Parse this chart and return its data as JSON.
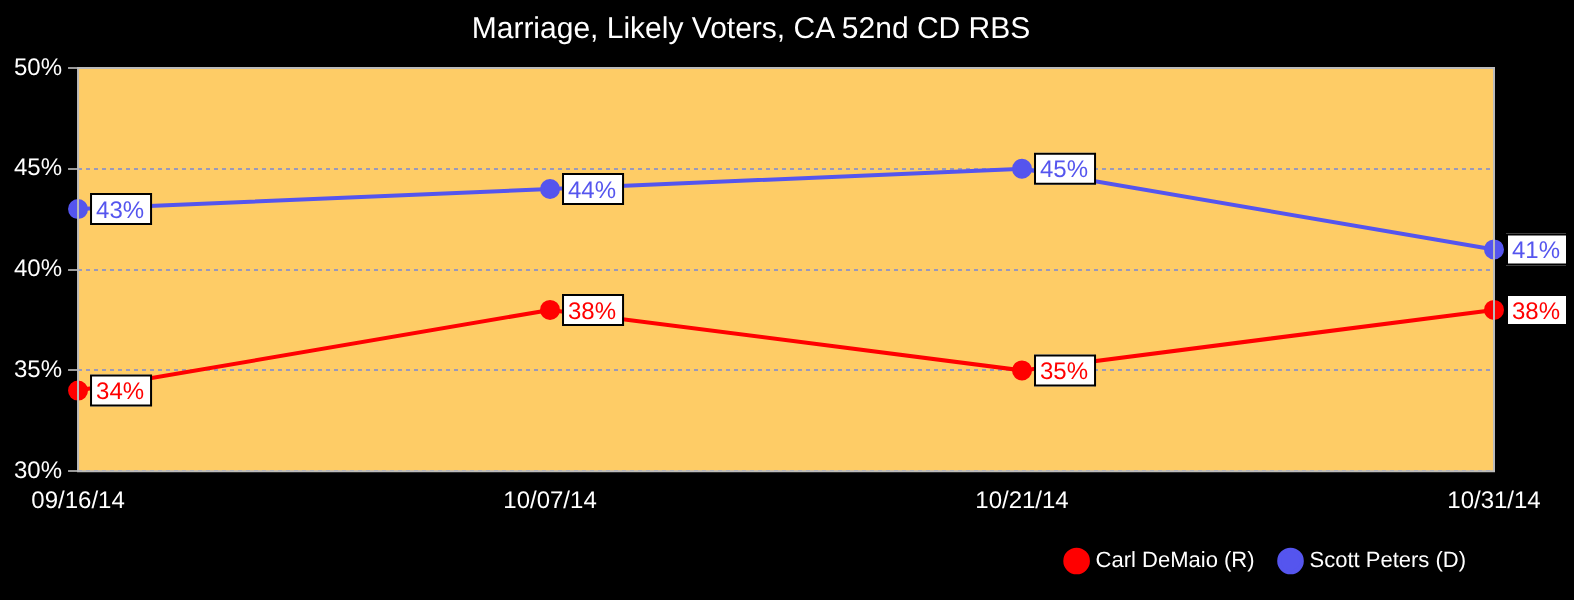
{
  "chart_data": {
    "type": "line",
    "title": "Marriage, Likely Voters, CA 52nd CD RBS",
    "categories": [
      "09/16/14",
      "10/07/14",
      "10/21/14",
      "10/31/14"
    ],
    "series": [
      {
        "name": "Carl DeMaio (R)",
        "color": "#ff0000",
        "values": [
          34,
          38,
          35,
          38
        ],
        "value_labels": [
          "34%",
          "38%",
          "35%",
          "38%"
        ]
      },
      {
        "name": "Scott Peters (D)",
        "color": "#5555ee",
        "values": [
          43,
          44,
          45,
          41
        ],
        "value_labels": [
          "43%",
          "44%",
          "45%",
          "41%"
        ]
      }
    ],
    "ylim": [
      30,
      50
    ],
    "yticks": [
      {
        "value": 30,
        "label": "30%"
      },
      {
        "value": 35,
        "label": "35%"
      },
      {
        "value": 40,
        "label": "40%"
      },
      {
        "value": 45,
        "label": "45%"
      },
      {
        "value": 50,
        "label": "50%"
      }
    ],
    "grid": "y",
    "legend": "bottom right",
    "marker": "circle",
    "line_style": "solid"
  }
}
